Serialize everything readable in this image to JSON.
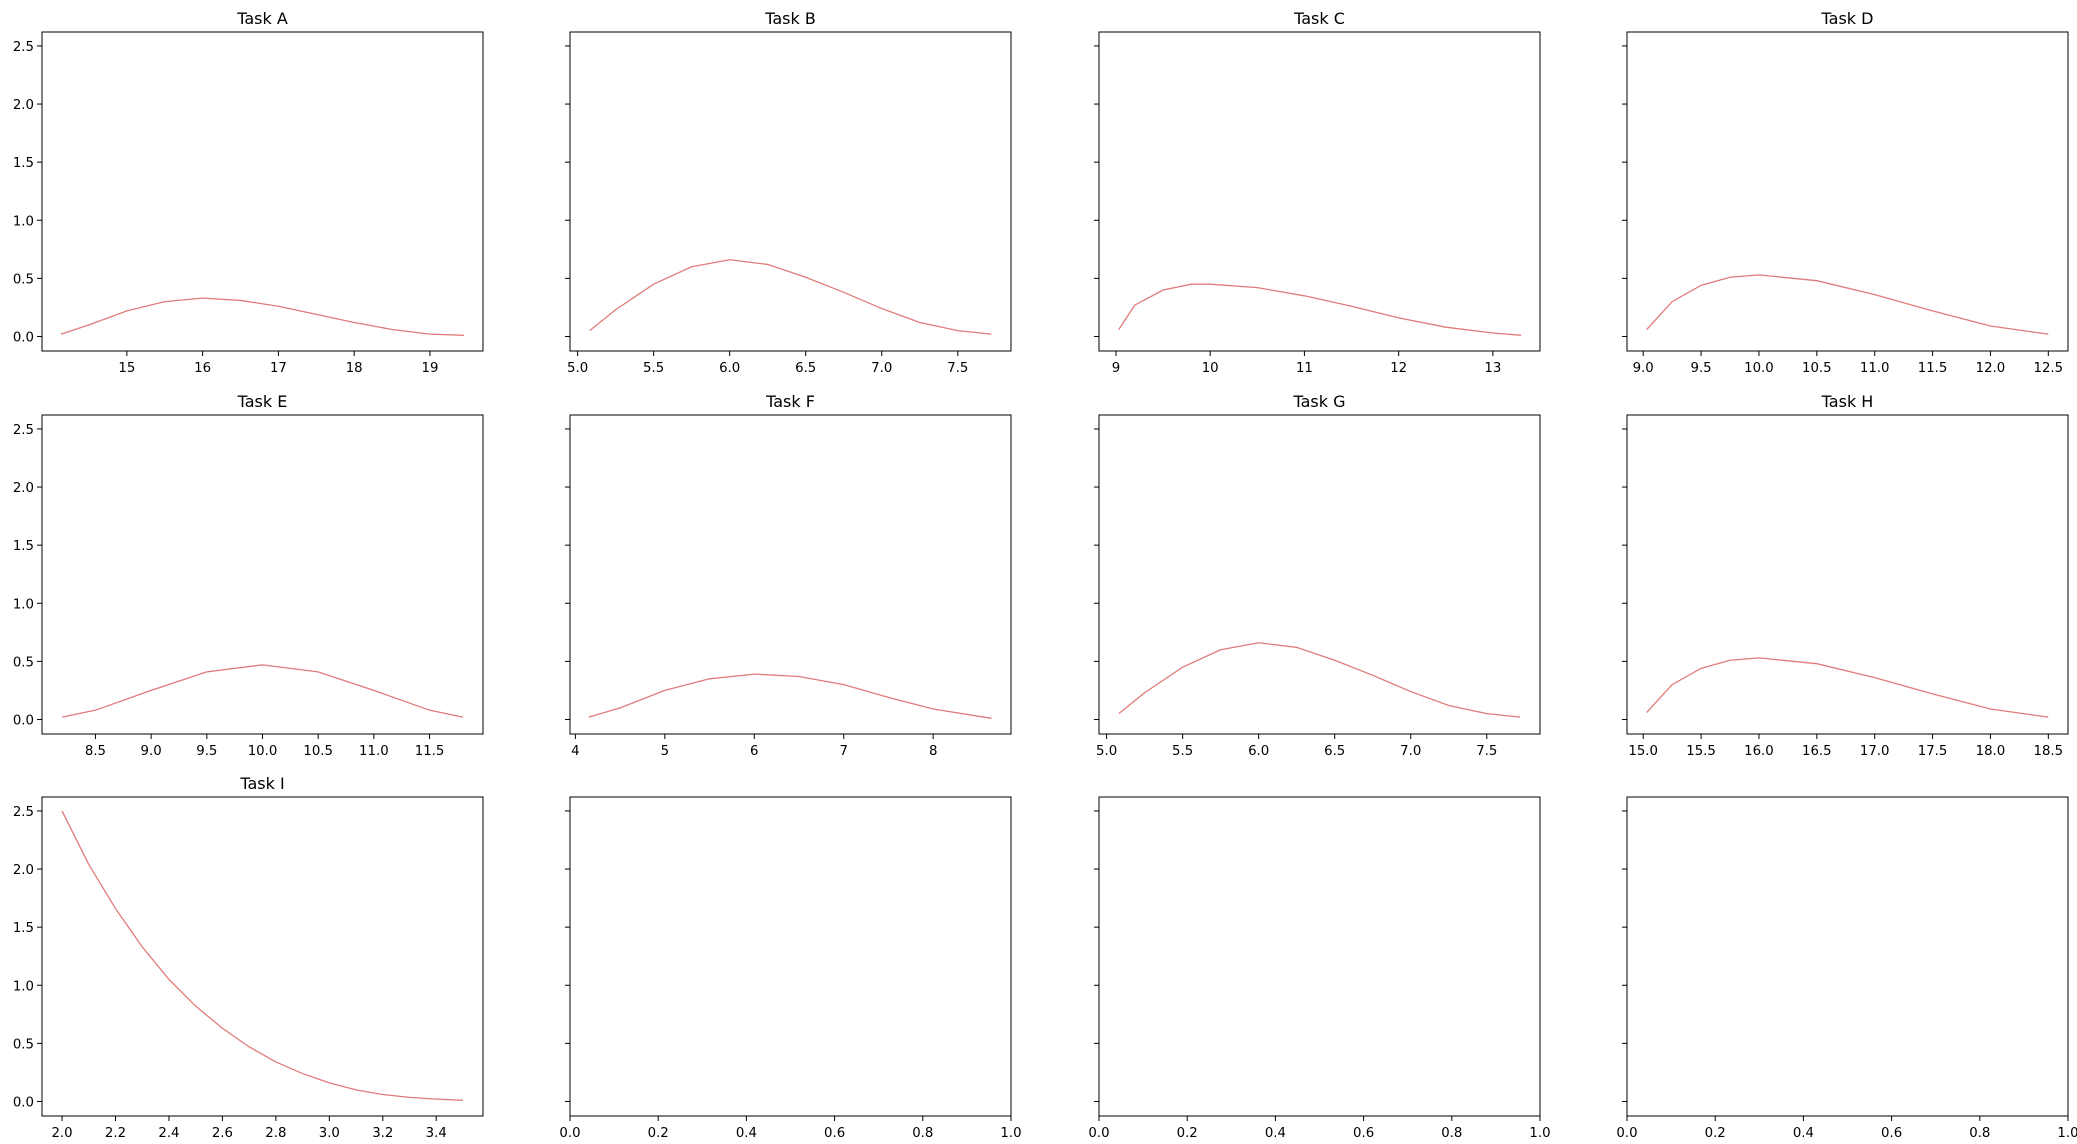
{
  "chart_data": [
    {
      "type": "line",
      "title": "Task A",
      "xlim": [
        13.88,
        19.7
      ],
      "ylim": [
        -0.125,
        2.62
      ],
      "xticks": [
        15,
        16,
        17,
        18,
        19
      ],
      "xtick_labels": [
        "15",
        "16",
        "17",
        "18",
        "19"
      ],
      "yticks": [
        0,
        0.5,
        1,
        1.5,
        2,
        2.5
      ],
      "ytick_labels": [
        "0.0",
        "0.5",
        "1.0",
        "1.5",
        "2.0",
        "2.5"
      ],
      "x": [
        14.13,
        14.5,
        15.0,
        15.5,
        16.0,
        16.5,
        17.0,
        17.5,
        18.0,
        18.5,
        19.0,
        19.45
      ],
      "y": [
        0.02,
        0.1,
        0.22,
        0.3,
        0.33,
        0.31,
        0.26,
        0.19,
        0.12,
        0.06,
        0.02,
        0.01
      ]
    },
    {
      "type": "line",
      "title": "Task B",
      "xlim": [
        4.95,
        7.85
      ],
      "ylim": [
        -0.125,
        2.62
      ],
      "xticks": [
        5.0,
        5.5,
        6.0,
        6.5,
        7.0,
        7.5
      ],
      "xtick_labels": [
        "5.0",
        "5.5",
        "6.0",
        "6.5",
        "7.0",
        "7.5"
      ],
      "yticks": [
        0,
        0.5,
        1,
        1.5,
        2,
        2.5
      ],
      "ytick_labels": [
        "",
        "",
        "",
        "",
        "",
        ""
      ],
      "x": [
        5.08,
        5.25,
        5.5,
        5.75,
        6.0,
        6.25,
        6.5,
        6.75,
        7.0,
        7.25,
        7.5,
        7.72
      ],
      "y": [
        0.05,
        0.23,
        0.45,
        0.6,
        0.66,
        0.62,
        0.51,
        0.38,
        0.24,
        0.12,
        0.05,
        0.02
      ]
    },
    {
      "type": "line",
      "title": "Task C",
      "xlim": [
        8.82,
        13.5
      ],
      "ylim": [
        -0.125,
        2.62
      ],
      "xticks": [
        9,
        10,
        11,
        12,
        13
      ],
      "xtick_labels": [
        "9",
        "10",
        "11",
        "12",
        "13"
      ],
      "yticks": [
        0,
        0.5,
        1,
        1.5,
        2,
        2.5
      ],
      "ytick_labels": [
        "",
        "",
        "",
        "",
        "",
        ""
      ],
      "x": [
        9.03,
        9.2,
        9.5,
        9.8,
        10.0,
        10.5,
        11.0,
        11.5,
        12.0,
        12.5,
        13.0,
        13.3
      ],
      "y": [
        0.06,
        0.27,
        0.4,
        0.45,
        0.45,
        0.42,
        0.35,
        0.26,
        0.16,
        0.08,
        0.03,
        0.01
      ]
    },
    {
      "type": "line",
      "title": "Task D",
      "xlim": [
        8.86,
        12.67
      ],
      "ylim": [
        -0.125,
        2.62
      ],
      "xticks": [
        9.0,
        9.5,
        10.0,
        10.5,
        11.0,
        11.5,
        12.0,
        12.5
      ],
      "xtick_labels": [
        "9.0",
        "9.5",
        "10.0",
        "10.5",
        "11.0",
        "11.5",
        "12.0",
        "12.5"
      ],
      "yticks": [
        0,
        0.5,
        1,
        1.5,
        2,
        2.5
      ],
      "ytick_labels": [
        "",
        "",
        "",
        "",
        "",
        ""
      ],
      "x": [
        9.03,
        9.25,
        9.5,
        9.75,
        10.0,
        10.5,
        11.0,
        11.5,
        12.0,
        12.5
      ],
      "y": [
        0.06,
        0.3,
        0.44,
        0.51,
        0.53,
        0.48,
        0.36,
        0.22,
        0.09,
        0.02
      ]
    },
    {
      "type": "line",
      "title": "Task E",
      "xlim": [
        8.02,
        11.98
      ],
      "ylim": [
        -0.125,
        2.62
      ],
      "xticks": [
        8.5,
        9.0,
        9.5,
        10.0,
        10.5,
        11.0,
        11.5
      ],
      "xtick_labels": [
        "8.5",
        "9.0",
        "9.5",
        "10.0",
        "10.5",
        "11.0",
        "11.5"
      ],
      "yticks": [
        0,
        0.5,
        1,
        1.5,
        2,
        2.5
      ],
      "ytick_labels": [
        "0.0",
        "0.5",
        "1.0",
        "1.5",
        "2.0",
        "2.5"
      ],
      "x": [
        8.2,
        8.5,
        9.0,
        9.5,
        10.0,
        10.5,
        11.0,
        11.5,
        11.8
      ],
      "y": [
        0.02,
        0.08,
        0.25,
        0.41,
        0.47,
        0.41,
        0.25,
        0.08,
        0.02
      ]
    },
    {
      "type": "line",
      "title": "Task F",
      "xlim": [
        3.94,
        8.87
      ],
      "ylim": [
        -0.125,
        2.62
      ],
      "xticks": [
        4,
        5,
        6,
        7,
        8
      ],
      "xtick_labels": [
        "4",
        "5",
        "6",
        "7",
        "8"
      ],
      "yticks": [
        0,
        0.5,
        1,
        1.5,
        2,
        2.5
      ],
      "ytick_labels": [
        "",
        "",
        "",
        "",
        "",
        ""
      ],
      "x": [
        4.15,
        4.5,
        5.0,
        5.5,
        6.0,
        6.5,
        7.0,
        7.5,
        8.0,
        8.65
      ],
      "y": [
        0.02,
        0.1,
        0.25,
        0.35,
        0.39,
        0.37,
        0.3,
        0.19,
        0.09,
        0.01
      ]
    },
    {
      "type": "line",
      "title": "Task G",
      "xlim": [
        4.95,
        7.85
      ],
      "ylim": [
        -0.125,
        2.62
      ],
      "xticks": [
        5.0,
        5.5,
        6.0,
        6.5,
        7.0,
        7.5
      ],
      "xtick_labels": [
        "5.0",
        "5.5",
        "6.0",
        "6.5",
        "7.0",
        "7.5"
      ],
      "yticks": [
        0,
        0.5,
        1,
        1.5,
        2,
        2.5
      ],
      "ytick_labels": [
        "",
        "",
        "",
        "",
        "",
        ""
      ],
      "x": [
        5.08,
        5.25,
        5.5,
        5.75,
        6.0,
        6.25,
        6.5,
        6.75,
        7.0,
        7.25,
        7.5,
        7.72
      ],
      "y": [
        0.05,
        0.23,
        0.45,
        0.6,
        0.66,
        0.62,
        0.51,
        0.38,
        0.24,
        0.12,
        0.05,
        0.02
      ]
    },
    {
      "type": "line",
      "title": "Task H",
      "xlim": [
        14.86,
        18.67
      ],
      "ylim": [
        -0.125,
        2.62
      ],
      "xticks": [
        15.0,
        15.5,
        16.0,
        16.5,
        17.0,
        17.5,
        18.0,
        18.5
      ],
      "xtick_labels": [
        "15.0",
        "15.5",
        "16.0",
        "16.5",
        "17.0",
        "17.5",
        "18.0",
        "18.5"
      ],
      "yticks": [
        0,
        0.5,
        1,
        1.5,
        2,
        2.5
      ],
      "ytick_labels": [
        "",
        "",
        "",
        "",
        "",
        ""
      ],
      "x": [
        15.03,
        15.25,
        15.5,
        15.75,
        16.0,
        16.5,
        17.0,
        17.5,
        18.0,
        18.5
      ],
      "y": [
        0.06,
        0.3,
        0.44,
        0.51,
        0.53,
        0.48,
        0.36,
        0.22,
        0.09,
        0.02
      ]
    },
    {
      "type": "line",
      "title": "Task I",
      "xlim": [
        1.925,
        3.575
      ],
      "ylim": [
        -0.125,
        2.62
      ],
      "xticks": [
        2.0,
        2.2,
        2.4,
        2.6,
        2.8,
        3.0,
        3.2,
        3.4
      ],
      "xtick_labels": [
        "2.0",
        "2.2",
        "2.4",
        "2.6",
        "2.8",
        "3.0",
        "3.2",
        "3.4"
      ],
      "yticks": [
        0,
        0.5,
        1,
        1.5,
        2,
        2.5
      ],
      "ytick_labels": [
        "0.0",
        "0.5",
        "1.0",
        "1.5",
        "2.0",
        "2.5"
      ],
      "x": [
        2.0,
        2.1,
        2.2,
        2.3,
        2.4,
        2.5,
        2.6,
        2.7,
        2.8,
        2.9,
        3.0,
        3.1,
        3.2,
        3.3,
        3.4,
        3.5
      ],
      "y": [
        2.5,
        2.04,
        1.66,
        1.33,
        1.05,
        0.82,
        0.63,
        0.47,
        0.34,
        0.24,
        0.16,
        0.1,
        0.06,
        0.035,
        0.02,
        0.01
      ]
    },
    {
      "type": "line",
      "title": "",
      "xlim": [
        0,
        1
      ],
      "ylim": [
        -0.125,
        2.62
      ],
      "xticks": [
        0,
        0.2,
        0.4,
        0.6,
        0.8,
        1.0
      ],
      "xtick_labels": [
        "0.0",
        "0.2",
        "0.4",
        "0.6",
        "0.8",
        "1.0"
      ],
      "yticks": [
        0,
        0.5,
        1,
        1.5,
        2,
        2.5
      ],
      "ytick_labels": [
        "",
        "",
        "",
        "",
        "",
        ""
      ],
      "x": [],
      "y": []
    },
    {
      "type": "line",
      "title": "",
      "xlim": [
        0,
        1
      ],
      "ylim": [
        -0.125,
        2.62
      ],
      "xticks": [
        0,
        0.2,
        0.4,
        0.6,
        0.8,
        1.0
      ],
      "xtick_labels": [
        "0.0",
        "0.2",
        "0.4",
        "0.6",
        "0.8",
        "1.0"
      ],
      "yticks": [
        0,
        0.5,
        1,
        1.5,
        2,
        2.5
      ],
      "ytick_labels": [
        "",
        "",
        "",
        "",
        "",
        ""
      ],
      "x": [],
      "y": []
    },
    {
      "type": "line",
      "title": "",
      "xlim": [
        0,
        1
      ],
      "ylim": [
        -0.125,
        2.62
      ],
      "xticks": [
        0,
        0.2,
        0.4,
        0.6,
        0.8,
        1.0
      ],
      "xtick_labels": [
        "0.0",
        "0.2",
        "0.4",
        "0.6",
        "0.8",
        "1.0"
      ],
      "yticks": [
        0,
        0.5,
        1,
        1.5,
        2,
        2.5
      ],
      "ytick_labels": [
        "",
        "",
        "",
        "",
        "",
        ""
      ],
      "x": [],
      "y": []
    }
  ],
  "colors": {
    "line": "#e07b7b",
    "axes": "#000000"
  }
}
